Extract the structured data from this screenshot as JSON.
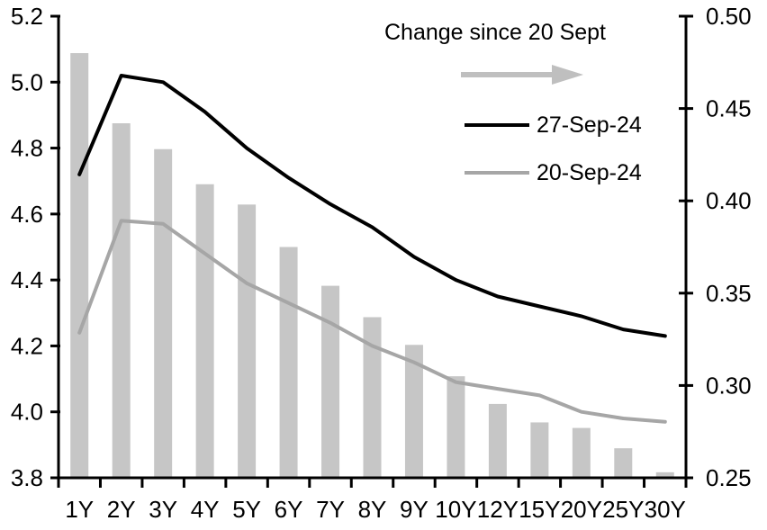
{
  "chart_data": {
    "type": "combo-bar-line",
    "title": "",
    "categories": [
      "1Y",
      "2Y",
      "3Y",
      "4Y",
      "5Y",
      "6Y",
      "7Y",
      "8Y",
      "9Y",
      "10Y",
      "12Y",
      "15Y",
      "20Y",
      "25Y",
      "30Y"
    ],
    "bar_series": {
      "name": "Change since 20 Sept",
      "axis": "right",
      "values": [
        0.48,
        0.442,
        0.428,
        0.409,
        0.398,
        0.375,
        0.354,
        0.337,
        0.322,
        0.305,
        0.29,
        0.28,
        0.277,
        0.266,
        0.253
      ]
    },
    "line_series": [
      {
        "name": "27-Sep-24",
        "axis": "left",
        "values": [
          4.72,
          5.02,
          5.0,
          4.91,
          4.8,
          4.71,
          4.63,
          4.56,
          4.47,
          4.4,
          4.35,
          4.32,
          4.29,
          4.25,
          4.23
        ]
      },
      {
        "name": "20-Sep-24",
        "axis": "left",
        "values": [
          4.24,
          4.58,
          4.57,
          4.48,
          4.39,
          4.33,
          4.27,
          4.2,
          4.15,
          4.09,
          4.07,
          4.05,
          4.0,
          3.98,
          3.97
        ]
      }
    ],
    "left_axis": {
      "min": 3.8,
      "max": 5.2,
      "ticks": [
        {
          "value": 5.2,
          "label": "5.2"
        },
        {
          "value": 5.0,
          "label": "5.0"
        },
        {
          "value": 4.8,
          "label": "4.8"
        },
        {
          "value": 4.6,
          "label": "4.6"
        },
        {
          "value": 4.4,
          "label": "4.4"
        },
        {
          "value": 4.2,
          "label": "4.2"
        },
        {
          "value": 4.0,
          "label": "4.0"
        },
        {
          "value": 3.8,
          "label": "3.8"
        }
      ]
    },
    "right_axis": {
      "min": 0.25,
      "max": 0.5,
      "ticks": [
        {
          "value": 0.5,
          "label": "0.50"
        },
        {
          "value": 0.45,
          "label": "0.45"
        },
        {
          "value": 0.4,
          "label": "0.40"
        },
        {
          "value": 0.35,
          "label": "0.35"
        },
        {
          "value": 0.3,
          "label": "0.30"
        },
        {
          "value": 0.25,
          "label": "0.25"
        }
      ]
    },
    "grid": false,
    "legend_position": "top-right-inside"
  },
  "colors": {
    "background": "#ffffff",
    "axis": "#000000",
    "text": "#000000",
    "bar": "#c6c6c6",
    "line_27_sep": "#000000",
    "line_20_sep": "#a6a6a6",
    "arrow": "#bfbfbf"
  }
}
